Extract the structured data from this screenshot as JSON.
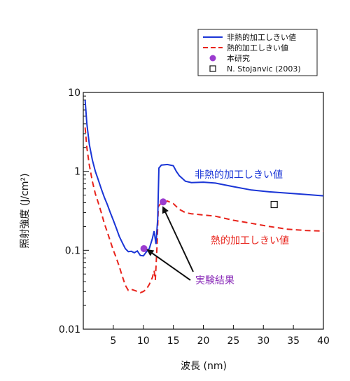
{
  "chart_data": {
    "type": "line",
    "title": "",
    "xlabel": "波長 (nm)",
    "ylabel": "照射強度 (J/cm²)",
    "xlim": [
      0,
      40
    ],
    "ylim": [
      0.01,
      10
    ],
    "yscale": "log",
    "grid": false,
    "x_ticks": [
      5,
      10,
      15,
      20,
      25,
      30,
      35,
      40
    ],
    "x_tick_labels": [
      "5",
      "10",
      "15",
      "20",
      "25",
      "30",
      "35",
      "40"
    ],
    "y_ticks": [
      0.01,
      0.1,
      1,
      10
    ],
    "y_tick_labels": [
      "0.01",
      "0.1",
      "1",
      "10"
    ],
    "legend_position": "top-right",
    "series": [
      {
        "name": "非熱的加工しきい値",
        "color": "#1a35d6",
        "style": "solid",
        "points": [
          [
            0.3,
            8.0
          ],
          [
            0.6,
            4.0
          ],
          [
            1.0,
            2.2
          ],
          [
            1.5,
            1.4
          ],
          [
            2.0,
            1.0
          ],
          [
            2.5,
            0.78
          ],
          [
            3.0,
            0.6
          ],
          [
            3.5,
            0.47
          ],
          [
            4.0,
            0.38
          ],
          [
            4.5,
            0.3
          ],
          [
            5.0,
            0.24
          ],
          [
            5.5,
            0.19
          ],
          [
            6.0,
            0.15
          ],
          [
            6.5,
            0.125
          ],
          [
            7.0,
            0.105
          ],
          [
            7.5,
            0.096
          ],
          [
            8.0,
            0.097
          ],
          [
            8.5,
            0.093
          ],
          [
            9.0,
            0.098
          ],
          [
            9.5,
            0.086
          ],
          [
            10.0,
            0.085
          ],
          [
            10.5,
            0.095
          ],
          [
            11.0,
            0.105
          ],
          [
            11.5,
            0.14
          ],
          [
            11.8,
            0.175
          ],
          [
            12.1,
            0.12
          ],
          [
            12.4,
            0.25
          ],
          [
            12.6,
            1.1
          ],
          [
            13.0,
            1.2
          ],
          [
            14.0,
            1.22
          ],
          [
            15.0,
            1.18
          ],
          [
            15.5,
            1.0
          ],
          [
            16.0,
            0.88
          ],
          [
            17.0,
            0.75
          ],
          [
            18.0,
            0.72
          ],
          [
            20.0,
            0.73
          ],
          [
            22.0,
            0.71
          ],
          [
            25.0,
            0.64
          ],
          [
            28.0,
            0.58
          ],
          [
            31.0,
            0.55
          ],
          [
            34.0,
            0.53
          ],
          [
            37.0,
            0.51
          ],
          [
            40.0,
            0.49
          ]
        ]
      },
      {
        "name": "熱的加工しきい値",
        "color": "#e8231b",
        "style": "dashed",
        "points": [
          [
            0.3,
            3.6
          ],
          [
            0.6,
            2.0
          ],
          [
            1.0,
            1.2
          ],
          [
            1.5,
            0.75
          ],
          [
            2.0,
            0.52
          ],
          [
            2.5,
            0.4
          ],
          [
            3.0,
            0.3
          ],
          [
            3.5,
            0.22
          ],
          [
            4.0,
            0.17
          ],
          [
            4.5,
            0.13
          ],
          [
            5.0,
            0.1
          ],
          [
            5.5,
            0.08
          ],
          [
            6.0,
            0.062
          ],
          [
            6.5,
            0.047
          ],
          [
            7.0,
            0.036
          ],
          [
            7.5,
            0.031
          ],
          [
            8.0,
            0.032
          ],
          [
            8.5,
            0.031
          ],
          [
            9.0,
            0.03
          ],
          [
            9.5,
            0.029
          ],
          [
            10.0,
            0.03
          ],
          [
            10.5,
            0.032
          ],
          [
            11.0,
            0.037
          ],
          [
            11.5,
            0.045
          ],
          [
            11.8,
            0.055
          ],
          [
            12.0,
            0.042
          ],
          [
            12.3,
            0.12
          ],
          [
            12.5,
            0.36
          ],
          [
            13.0,
            0.4
          ],
          [
            14.0,
            0.42
          ],
          [
            15.0,
            0.39
          ],
          [
            16.0,
            0.33
          ],
          [
            17.0,
            0.3
          ],
          [
            18.0,
            0.29
          ],
          [
            20.0,
            0.28
          ],
          [
            22.0,
            0.27
          ],
          [
            25.0,
            0.24
          ],
          [
            28.0,
            0.22
          ],
          [
            31.0,
            0.2
          ],
          [
            34.0,
            0.185
          ],
          [
            37.0,
            0.178
          ],
          [
            40.0,
            0.175
          ]
        ]
      },
      {
        "name": "本研究",
        "color": "#9b3ccf",
        "marker": "circle",
        "points": [
          [
            10.1,
            0.105
          ],
          [
            13.3,
            0.41
          ]
        ]
      },
      {
        "name": "N. Stojanvic (2003)",
        "color": "#111111",
        "marker": "open-square",
        "points": [
          [
            31.8,
            0.38
          ]
        ]
      }
    ],
    "annotations": [
      {
        "text": "非熱的加工しきい値",
        "color": "#1a35d6"
      },
      {
        "text": "熱的加工しきい値",
        "color": "#e8231b"
      },
      {
        "text": "実験結果",
        "color": "#8a2bb8"
      }
    ]
  }
}
